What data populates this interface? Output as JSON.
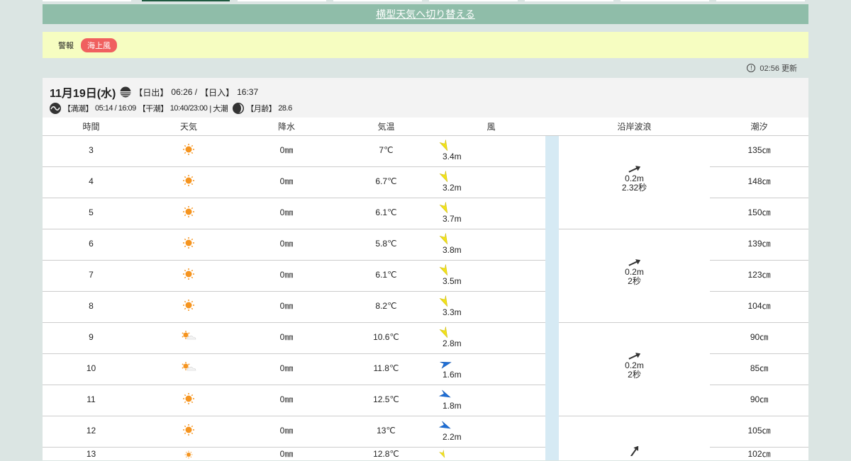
{
  "switch_link": "横型天気へ切り替える",
  "warning": {
    "label": "警報",
    "badge": "海上風"
  },
  "updated": "02:56 更新",
  "day": {
    "date": "11月19日(水)",
    "sunrise_label": "【日出】",
    "sunrise": "06:26 /",
    "sunset_label": "【日入】",
    "sunset": "16:37",
    "high_tide_label": "【満潮】",
    "high_tide": "05:14 / 16:09",
    "low_tide_label": "【干潮】",
    "low_tide": "10:40/23:00",
    "tide_type": "| 大潮",
    "moon_label": "【月齢】",
    "moon_age": "28.6"
  },
  "columns": [
    "時間",
    "天気",
    "降水",
    "気温",
    "風",
    "沿岸波浪",
    "潮汐"
  ],
  "rows": [
    {
      "hour": "3",
      "weather": "sunny",
      "precip": "0㎜",
      "temp": "7℃",
      "wind": "3.4m",
      "wind_color": "yellow",
      "tide": "135㎝"
    },
    {
      "hour": "4",
      "weather": "sunny",
      "precip": "0㎜",
      "temp": "6.7℃",
      "wind": "3.2m",
      "wind_color": "yellow",
      "tide": "148㎝"
    },
    {
      "hour": "5",
      "weather": "sunny",
      "precip": "0㎜",
      "temp": "6.1℃",
      "wind": "3.7m",
      "wind_color": "yellow",
      "tide": "150㎝"
    },
    {
      "hour": "6",
      "weather": "sunny",
      "precip": "0㎜",
      "temp": "5.8℃",
      "wind": "3.8m",
      "wind_color": "yellow",
      "tide": "139㎝"
    },
    {
      "hour": "7",
      "weather": "sunny",
      "precip": "0㎜",
      "temp": "6.1℃",
      "wind": "3.5m",
      "wind_color": "yellow",
      "tide": "123㎝"
    },
    {
      "hour": "8",
      "weather": "sunny",
      "precip": "0㎜",
      "temp": "8.2℃",
      "wind": "3.3m",
      "wind_color": "yellow",
      "tide": "104㎝"
    },
    {
      "hour": "9",
      "weather": "sunny-cloudy",
      "precip": "0㎜",
      "temp": "10.6℃",
      "wind": "2.8m",
      "wind_color": "yellow",
      "tide": "90㎝"
    },
    {
      "hour": "10",
      "weather": "sunny-cloudy",
      "precip": "0㎜",
      "temp": "11.8℃",
      "wind": "1.6m",
      "wind_color": "blue",
      "tide": "85㎝"
    },
    {
      "hour": "11",
      "weather": "sunny",
      "precip": "0㎜",
      "temp": "12.5℃",
      "wind": "1.8m",
      "wind_color": "blue",
      "tide": "90㎝"
    },
    {
      "hour": "12",
      "weather": "sunny",
      "precip": "0㎜",
      "temp": "13℃",
      "wind": "2.2m",
      "wind_color": "blue",
      "tide": "105㎝"
    },
    {
      "hour": "13",
      "weather": "sunny",
      "precip": "0㎜",
      "temp": "12.8℃",
      "wind": "",
      "wind_color": "yellow",
      "tide": "102㎝"
    }
  ],
  "waves": [
    {
      "height": "0.2m",
      "period": "2.32秒",
      "direction": "northeast"
    },
    {
      "height": "0.2m",
      "period": "2秒",
      "direction": "northeast"
    },
    {
      "height": "0.2m",
      "period": "2秒",
      "direction": "northeast"
    },
    {
      "height": "",
      "period": "",
      "direction": "north-northeast"
    }
  ],
  "colors": {
    "yellow": "#f2e21a",
    "blue": "#1f6fd6",
    "sun": "#f5941f",
    "header_bar": "#8fbda9",
    "warning_bg": "#f6fdc1",
    "badge": "#f0605f"
  }
}
